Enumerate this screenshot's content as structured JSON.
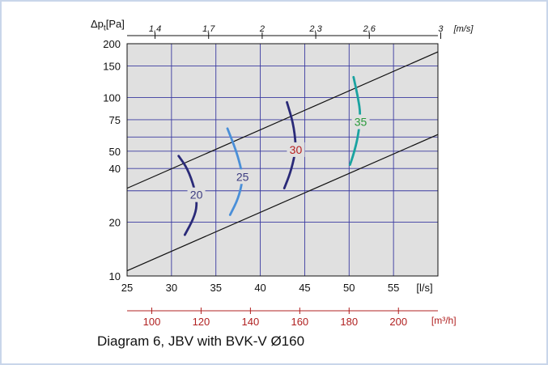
{
  "chart_data": {
    "type": "line",
    "title": "",
    "caption": "Diagram 6, JBV with BVK-V Ø160",
    "y_label_main": "Δp",
    "y_label_sub": "t",
    "y_label_unit": "[Pa]",
    "y_scale": "log",
    "ylim": [
      10,
      200
    ],
    "y_ticks": [
      10,
      20,
      40,
      50,
      75,
      100,
      150,
      200
    ],
    "xlim": [
      25,
      60
    ],
    "x_ticks": [
      25,
      30,
      35,
      40,
      45,
      50,
      55
    ],
    "x_unit": "[l/s]",
    "top_ticks": [
      "1,4",
      "1,7",
      "2",
      "2,3",
      "2,6",
      "3"
    ],
    "top_tick_values": [
      1.4,
      1.7,
      2,
      2.3,
      2.6,
      3
    ],
    "top_unit": "[m/s]",
    "bottom_ticks": [
      "100",
      "120",
      "140",
      "160",
      "180",
      "200"
    ],
    "bottom_tick_values": [
      100,
      120,
      140,
      160,
      180,
      200
    ],
    "bottom_unit": "[m³/h]",
    "grid": true,
    "bounds": [
      {
        "name": "",
        "points": [
          [
            25,
            31
          ],
          [
            60,
            180
          ]
        ]
      },
      {
        "name": "",
        "points": [
          [
            25,
            10.7
          ],
          [
            60,
            62
          ]
        ]
      }
    ],
    "series": [
      {
        "name": "",
        "label": "20",
        "color": "#2a2a78",
        "points": [
          [
            30.8,
            47
          ],
          [
            31.8,
            40
          ],
          [
            32.6,
            31
          ],
          [
            32.9,
            25
          ],
          [
            32.5,
            21
          ],
          [
            31.5,
            17
          ]
        ]
      },
      {
        "name": "",
        "label": "25",
        "color": "#4a8fd8",
        "points": [
          [
            36.3,
            67
          ],
          [
            37.3,
            50
          ],
          [
            37.9,
            39
          ],
          [
            38.0,
            34
          ],
          [
            37.5,
            27
          ],
          [
            36.6,
            22
          ]
        ]
      },
      {
        "name": "",
        "label": "30",
        "color": "#2a2a78",
        "points": [
          [
            43.0,
            94
          ],
          [
            43.7,
            72
          ],
          [
            44.0,
            55
          ],
          [
            43.9,
            48
          ],
          [
            43.4,
            38
          ],
          [
            42.7,
            31
          ]
        ]
      },
      {
        "name": "",
        "label": "35",
        "color": "#1aa3a0",
        "points": [
          [
            50.5,
            130
          ],
          [
            51.0,
            100
          ],
          [
            51.3,
            80
          ],
          [
            51.0,
            60
          ],
          [
            50.5,
            48
          ],
          [
            50.1,
            42
          ]
        ]
      }
    ],
    "curve_labels": [
      {
        "text": "20",
        "x": 32.8,
        "y": 28.5,
        "color": "#3c3c80"
      },
      {
        "text": "25",
        "x": 38.0,
        "y": 36,
        "color": "#3c3c80"
      },
      {
        "text": "30",
        "x": 44.0,
        "y": 51,
        "color": "#b82020"
      },
      {
        "text": "35",
        "x": 51.3,
        "y": 73,
        "color": "#2a9a3a"
      }
    ]
  },
  "colors": {
    "frame_border": "#c9d6ea",
    "plot_bg": "#e0e0e0",
    "grid": "#3a3aa0",
    "bound_line": "#111111",
    "secondary_axis": "#b02020"
  }
}
